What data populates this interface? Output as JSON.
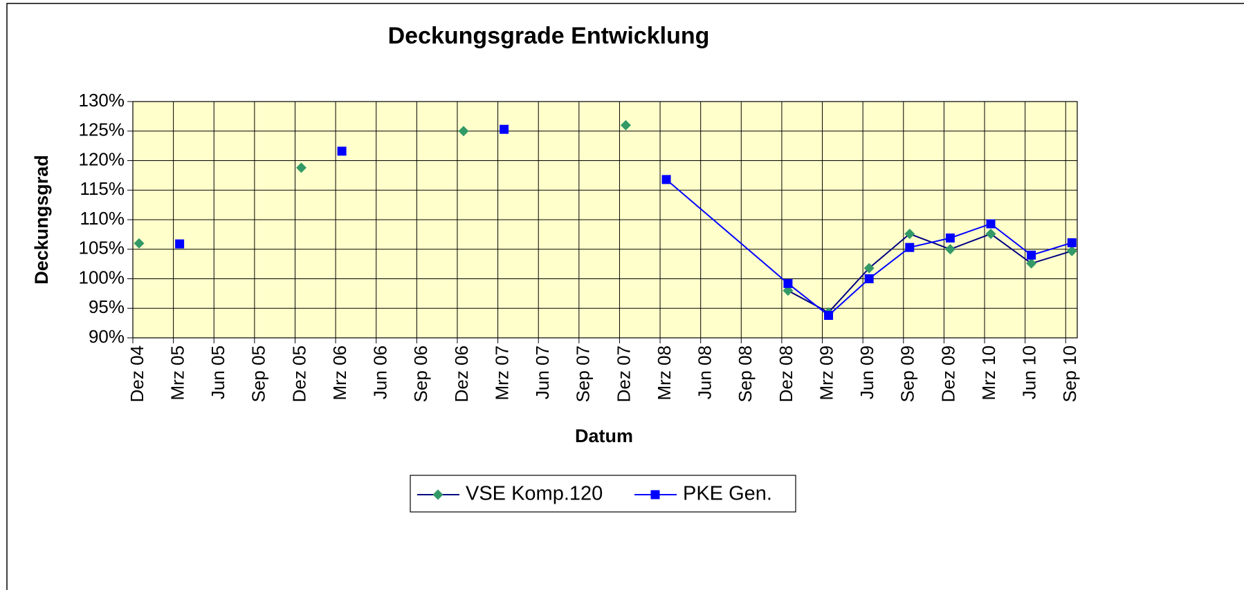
{
  "chart_data": {
    "type": "line",
    "title": "Deckungsgrade Entwicklung",
    "x_label": "Datum",
    "y_label": "Deckungsgrad",
    "xticks": [
      "Dez 04",
      "Mrz 05",
      "Jun 05",
      "Sep 05",
      "Dez 05",
      "Mrz 06",
      "Jun 06",
      "Sep 06",
      "Dez 06",
      "Mrz 07",
      "Jun 07",
      "Sep 07",
      "Dez 07",
      "Mrz 08",
      "Jun 08",
      "Sep 08",
      "Dez 08",
      "Mrz 09",
      "Jun 09",
      "Sep 09",
      "Dez 09",
      "Mrz 10",
      "Jun 10",
      "Sep 10"
    ],
    "x": [
      "Dez 04",
      "Mrz 05",
      "Dez 05",
      "Mrz 06",
      "Dez 06",
      "Mrz 07",
      "Dez 07",
      "Mrz 08",
      "Dez 08",
      "Mrz 09",
      "Jun 09",
      "Sep 09",
      "Dez 09",
      "Mrz 10",
      "Jun 10",
      "Sep 10"
    ],
    "series": [
      {
        "name": "VSE Komp.120",
        "color": "#000080",
        "marker": "diamond",
        "marker_color": "#339966",
        "values": [
          106,
          null,
          118.8,
          null,
          125,
          null,
          126,
          null,
          98,
          94.3,
          101.8,
          107.6,
          105,
          107.6,
          102.6,
          104.7
        ]
      },
      {
        "name": "PKE Gen.",
        "color": "#0000ff",
        "marker": "square",
        "marker_color": "#0000ff",
        "values": [
          null,
          105.9,
          null,
          121.6,
          null,
          125.3,
          null,
          116.8,
          99.2,
          93.8,
          100,
          105.3,
          106.9,
          109.3,
          104,
          106.1
        ]
      }
    ],
    "ylim": [
      90,
      130
    ],
    "yticks": [
      {
        "value": 90,
        "label": "90%"
      },
      {
        "value": 95,
        "label": "95%"
      },
      {
        "value": 100,
        "label": "100%"
      },
      {
        "value": 105,
        "label": "105%"
      },
      {
        "value": 110,
        "label": "110%"
      },
      {
        "value": 115,
        "label": "115%"
      },
      {
        "value": 120,
        "label": "120%"
      },
      {
        "value": 125,
        "label": "125%"
      },
      {
        "value": 130,
        "label": "130%"
      }
    ],
    "grid": true,
    "plot_background": "#ffffcc",
    "legend_position": "bottom"
  }
}
